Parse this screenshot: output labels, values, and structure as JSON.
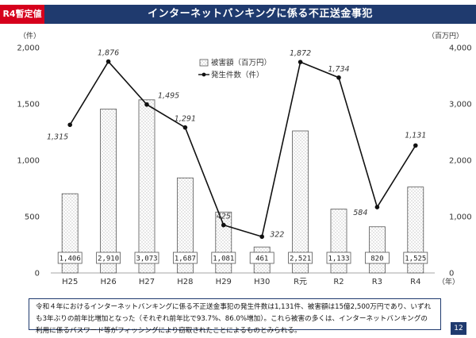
{
  "header": {
    "badge": "R4暫定値",
    "title": "インターネットバンキングに係る不正送金事犯"
  },
  "colors": {
    "navy": "#1f3a6e",
    "red": "#d6001c",
    "bar_fill": "#ffffff",
    "bar_stroke": "#555555",
    "line": "#111111"
  },
  "chart_data": {
    "type": "bar+line",
    "categories": [
      "H25",
      "H26",
      "H27",
      "H28",
      "H29",
      "H30",
      "R元",
      "R2",
      "R3",
      "R4"
    ],
    "x_unit": "（年）",
    "left_axis": {
      "unit": "（件）",
      "ylim": [
        0,
        2000
      ],
      "ticks": [
        0,
        500,
        1000,
        1500,
        2000
      ],
      "tick_labels": [
        "0",
        "500",
        "1,000",
        "1,500",
        "2,000"
      ]
    },
    "right_axis": {
      "unit": "（百万円）",
      "ylim": [
        0,
        4000
      ],
      "ticks": [
        0,
        1000,
        2000,
        3000,
        4000
      ],
      "tick_labels": [
        "0",
        "1,000",
        "2,000",
        "3,000",
        "4,000"
      ]
    },
    "series": [
      {
        "name": "被害額（百万円）",
        "kind": "bar",
        "axis": "right",
        "values": [
          1406,
          2910,
          3073,
          1687,
          1081,
          461,
          2521,
          1133,
          820,
          1525
        ],
        "labels": [
          "1,406",
          "2,910",
          "3,073",
          "1,687",
          "1,081",
          "461",
          "2,521",
          "1,133",
          "820",
          "1,525"
        ]
      },
      {
        "name": "発生件数（件）",
        "kind": "line",
        "axis": "left",
        "values": [
          1315,
          1876,
          1495,
          1291,
          425,
          322,
          1872,
          1734,
          584,
          1131
        ],
        "labels": [
          "1,315",
          "1,876",
          "1,495",
          "1,291",
          "425",
          "322",
          "1,872",
          "1,734",
          "584",
          "1,131"
        ]
      }
    ],
    "highlight_index": 9,
    "highlight_color": "#d6001c",
    "legend_position": "top-center"
  },
  "note": {
    "text": "令和４年におけるインターネットバンキングに係る不正送金事犯の発生件数は1,131件、被害額は15億2,500万円であり、いずれも3年ぶりの前年比増加となった（それぞれ前年比で93.7%、86.0%増加）。これら被害の多くは、インターネットバンキングの利用に係るパスワード等がフィッシングにより窃取されたことによるものとみられる。"
  },
  "page_number": "12"
}
